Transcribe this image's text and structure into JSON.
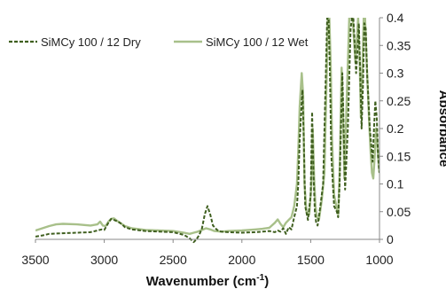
{
  "chart_data": {
    "type": "line",
    "title": "",
    "xlabel": "Wavenumber (cm",
    "xlabel_sup": "-1",
    "xlabel_suffix": ")",
    "ylabel": "Absorbance",
    "xlim": [
      3500,
      1000
    ],
    "ylim": [
      0,
      0.4
    ],
    "x_reversed": true,
    "x_ticks": [
      "3500",
      "3000",
      "2500",
      "2000",
      "1500",
      "1000"
    ],
    "y_ticks": [
      "0",
      "0.05",
      "0.1",
      "0.15",
      "0.2",
      "0.25",
      "0.3",
      "0.35",
      "0.4"
    ],
    "y_axis_side": "right",
    "grid": false,
    "legend_position": "top-left",
    "series": [
      {
        "name": "SiMCy 100 / 12 Dry",
        "color": "#3f5f1f",
        "style": "dashed",
        "x": [
          3500,
          3450,
          3400,
          3300,
          3200,
          3100,
          3050,
          3020,
          3000,
          2970,
          2950,
          2930,
          2900,
          2870,
          2850,
          2800,
          2700,
          2600,
          2500,
          2420,
          2380,
          2350,
          2330,
          2310,
          2290,
          2270,
          2250,
          2230,
          2210,
          2180,
          2150,
          2100,
          2000,
          1900,
          1850,
          1800,
          1760,
          1740,
          1720,
          1700,
          1680,
          1660,
          1640,
          1620,
          1600,
          1590,
          1580,
          1560,
          1550,
          1540,
          1520,
          1500,
          1490,
          1480,
          1470,
          1460,
          1450,
          1430,
          1410,
          1390,
          1380,
          1370,
          1360,
          1350,
          1330,
          1310,
          1300,
          1290,
          1270,
          1260,
          1250,
          1230,
          1210,
          1200,
          1190,
          1180,
          1170,
          1160,
          1150,
          1140,
          1130,
          1120,
          1110,
          1100,
          1090,
          1080,
          1070,
          1060,
          1050,
          1040,
          1030,
          1020,
          1010,
          1000
        ],
        "y": [
          0.005,
          0.007,
          0.01,
          0.011,
          0.012,
          0.013,
          0.016,
          0.018,
          0.017,
          0.03,
          0.037,
          0.035,
          0.032,
          0.027,
          0.022,
          0.018,
          0.015,
          0.014,
          0.013,
          0.008,
          0.002,
          -0.005,
          0.0,
          0.008,
          0.02,
          0.045,
          0.06,
          0.045,
          0.025,
          0.017,
          0.014,
          0.013,
          0.012,
          0.013,
          0.014,
          0.015,
          0.013,
          0.016,
          0.014,
          0.02,
          0.01,
          0.022,
          0.018,
          0.04,
          0.06,
          0.1,
          0.18,
          0.27,
          0.18,
          0.06,
          0.035,
          0.08,
          0.23,
          0.12,
          0.05,
          0.03,
          0.025,
          0.06,
          0.1,
          0.3,
          0.4,
          0.4,
          0.3,
          0.15,
          0.06,
          0.05,
          0.04,
          0.1,
          0.3,
          0.2,
          0.09,
          0.2,
          0.38,
          0.4,
          0.4,
          0.35,
          0.3,
          0.34,
          0.39,
          0.3,
          0.2,
          0.28,
          0.39,
          0.38,
          0.3,
          0.25,
          0.2,
          0.17,
          0.14,
          0.2,
          0.25,
          0.22,
          0.15,
          0.12
        ]
      },
      {
        "name": "SiMCy 100 / 12 Wet",
        "color": "#a8c08a",
        "style": "solid",
        "x": [
          3500,
          3450,
          3400,
          3350,
          3300,
          3200,
          3100,
          3050,
          3030,
          3010,
          2990,
          2970,
          2950,
          2930,
          2910,
          2880,
          2850,
          2800,
          2700,
          2600,
          2500,
          2420,
          2380,
          2350,
          2320,
          2290,
          2260,
          2230,
          2200,
          2150,
          2100,
          2000,
          1900,
          1850,
          1800,
          1760,
          1740,
          1720,
          1700,
          1680,
          1660,
          1640,
          1620,
          1600,
          1590,
          1580,
          1565,
          1555,
          1545,
          1530,
          1510,
          1495,
          1485,
          1475,
          1465,
          1455,
          1440,
          1420,
          1400,
          1385,
          1375,
          1365,
          1355,
          1345,
          1330,
          1310,
          1300,
          1290,
          1275,
          1265,
          1255,
          1240,
          1220,
          1205,
          1195,
          1185,
          1175,
          1165,
          1155,
          1145,
          1135,
          1125,
          1115,
          1105,
          1095,
          1085,
          1075,
          1065,
          1055,
          1045,
          1035,
          1025,
          1015,
          1005,
          1000
        ],
        "y": [
          0.016,
          0.02,
          0.024,
          0.027,
          0.028,
          0.027,
          0.025,
          0.027,
          0.032,
          0.025,
          0.024,
          0.032,
          0.037,
          0.038,
          0.034,
          0.029,
          0.024,
          0.02,
          0.017,
          0.016,
          0.015,
          0.012,
          0.01,
          0.012,
          0.014,
          0.017,
          0.02,
          0.018,
          0.015,
          0.014,
          0.015,
          0.016,
          0.018,
          0.019,
          0.021,
          0.03,
          0.036,
          0.028,
          0.022,
          0.03,
          0.035,
          0.04,
          0.06,
          0.1,
          0.16,
          0.24,
          0.3,
          0.26,
          0.1,
          0.05,
          0.045,
          0.1,
          0.2,
          0.11,
          0.06,
          0.04,
          0.035,
          0.07,
          0.12,
          0.28,
          0.4,
          0.4,
          0.32,
          0.18,
          0.08,
          0.055,
          0.045,
          0.12,
          0.31,
          0.22,
          0.11,
          0.24,
          0.4,
          0.4,
          0.4,
          0.36,
          0.32,
          0.36,
          0.4,
          0.33,
          0.22,
          0.3,
          0.4,
          0.4,
          0.33,
          0.27,
          0.21,
          0.16,
          0.12,
          0.11,
          0.15,
          0.2,
          0.17,
          0.13,
          0.12
        ]
      }
    ]
  }
}
